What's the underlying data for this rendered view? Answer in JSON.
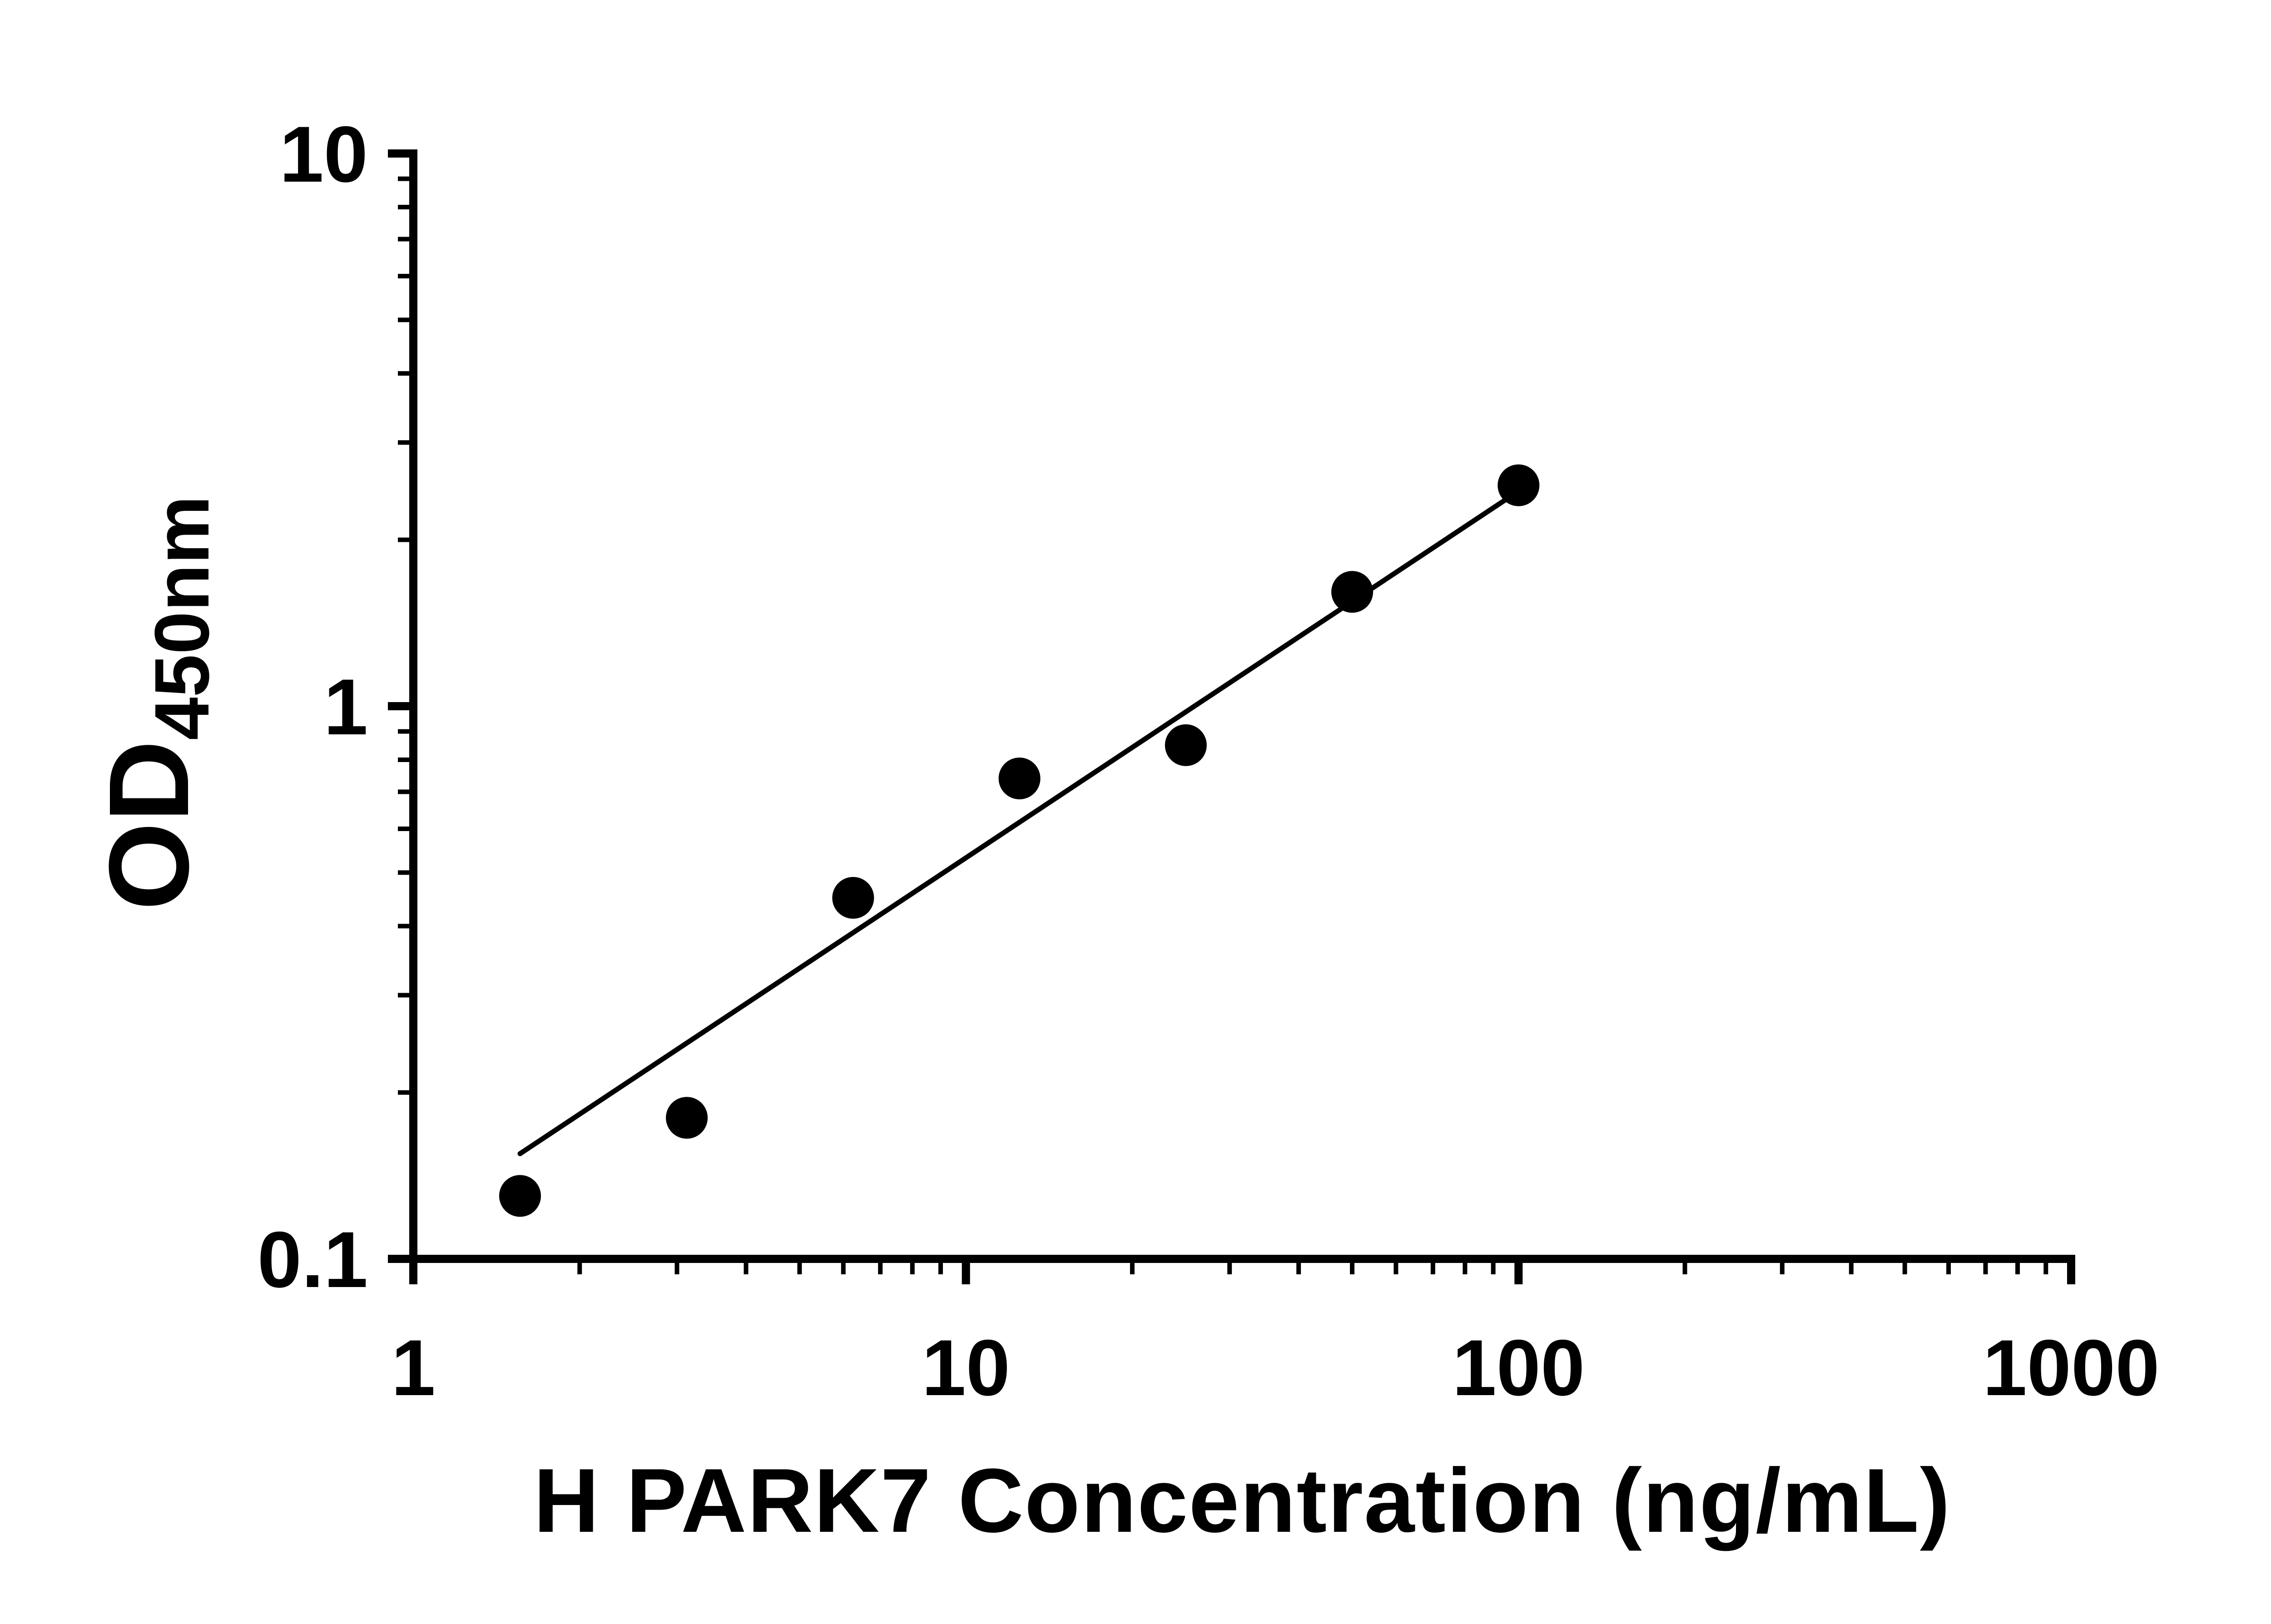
{
  "chart_data": {
    "type": "scatter",
    "title": "",
    "xlabel": "H PARK7 Concentration (ng/mL)",
    "ylabel_base": "OD",
    "ylabel_sub": "450nm",
    "x_scale": "log10",
    "y_scale": "log10",
    "xlim": [
      1,
      1000
    ],
    "ylim": [
      0.1,
      10
    ],
    "x_ticks": [
      1,
      10,
      100,
      1000
    ],
    "x_tick_labels": [
      "1",
      "10",
      "100",
      "1000"
    ],
    "y_ticks": [
      0.1,
      1,
      10
    ],
    "y_tick_labels": [
      "0.1",
      "1",
      "10"
    ],
    "grid": false,
    "legend": null,
    "points": [
      {
        "x": 1.56,
        "y": 0.13
      },
      {
        "x": 3.125,
        "y": 0.18
      },
      {
        "x": 6.25,
        "y": 0.45
      },
      {
        "x": 12.5,
        "y": 0.74
      },
      {
        "x": 25,
        "y": 0.85
      },
      {
        "x": 50,
        "y": 1.61
      },
      {
        "x": 100,
        "y": 2.51
      }
    ],
    "trend_line": {
      "x1": 1.56,
      "y1": 0.155,
      "x2": 100,
      "y2": 2.45
    },
    "colors": {
      "points": "#000000",
      "line": "#000000",
      "axis": "#000000",
      "text": "#000000",
      "background": "#ffffff"
    }
  }
}
